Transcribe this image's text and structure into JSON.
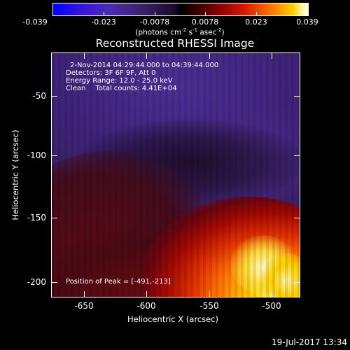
{
  "colorbar": {
    "ticks": [
      "-0.039",
      "-0.023",
      "-0.0078",
      "0.0078",
      "0.023",
      "0.039"
    ],
    "units_main": "(photons cm",
    "units_sup1": "-2",
    "units_mid": " s",
    "units_sup2": "-1",
    "units_mid2": " asec",
    "units_sup3": "-2",
    "units_end": ")"
  },
  "title": "Reconstructed RHESSI Image",
  "info": {
    "time": "2-Nov-2014 04:29:44.000 to 04:39:44.000",
    "detectors": "Detectors: 3F 6F 9F, Att 0",
    "energy": "Energy Range: 12.0 - 25.0 keV",
    "clean": "Clean",
    "counts": "Total counts: 4.41E+04",
    "peak": "Position of Peak = [-491,-213]"
  },
  "axes": {
    "xlabel": "Heliocentric X (arcsec)",
    "ylabel": "Heliocentric Y (arcsec)",
    "xticks": [
      "-650",
      "-600",
      "-550",
      "-500"
    ],
    "yticks": [
      "-50",
      "-100",
      "-150",
      "-200"
    ]
  },
  "timestamp": "19-Jul-2017 13:34"
}
